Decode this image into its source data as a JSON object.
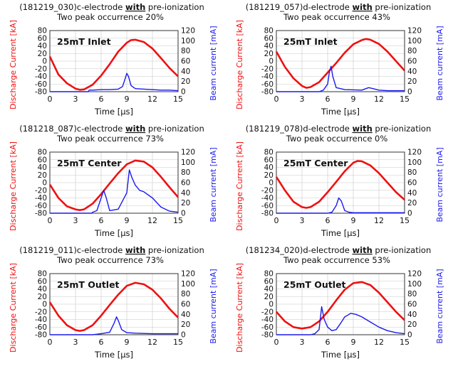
{
  "colors": {
    "discharge": "#ee1111",
    "beam": "#1a1aee",
    "grid": "#c8c8c8",
    "axis": "#333333"
  },
  "chart_data": [
    {
      "type": "line",
      "title_id": "(181219_030)c-electrode ",
      "title_with": "with",
      "title_rest": " pre-ionization",
      "subtitle": "Two peak occurrence 20%",
      "annotation": "25mT Inlet",
      "xlabel": "Time [μs]",
      "ylabel_left": "Discharge Current [kA]",
      "ylabel_right": "Beam current [mA]",
      "xlim": [
        0,
        15
      ],
      "ylim_left": [
        -80,
        80
      ],
      "ylim_right": [
        0,
        120
      ],
      "xticks": [
        0,
        3,
        6,
        9,
        12,
        15
      ],
      "yticks_left": [
        -80,
        -60,
        -40,
        -20,
        0,
        20,
        40,
        60,
        80
      ],
      "yticks_right": [
        0,
        20,
        40,
        60,
        80,
        100,
        120
      ],
      "grid": true,
      "series": [
        {
          "axis": "left",
          "color": "discharge",
          "x": [
            0,
            1,
            2,
            3,
            3.5,
            4,
            5,
            6,
            7,
            8,
            9,
            9.5,
            10,
            11,
            12,
            13,
            14,
            15
          ],
          "y": [
            12,
            -35,
            -58,
            -72,
            -75,
            -74,
            -62,
            -38,
            -8,
            25,
            48,
            55,
            56,
            50,
            33,
            8,
            -18,
            -40
          ]
        },
        {
          "axis": "right",
          "color": "beam",
          "x": [
            0,
            4.5,
            4.6,
            5,
            6,
            7,
            8,
            8.5,
            8.8,
            9,
            9.2,
            9.5,
            10,
            11,
            12,
            13,
            14,
            15
          ],
          "y": [
            0,
            0,
            3,
            3,
            4,
            4,
            5,
            10,
            25,
            36,
            30,
            12,
            6,
            5,
            4,
            3,
            3,
            2
          ]
        }
      ]
    },
    {
      "type": "line",
      "title_id": "(181219_057)d-electrode ",
      "title_with": "with",
      "title_rest": " pre-ionization",
      "subtitle": "Two peak occurrence 43%",
      "annotation": "25mT Inlet",
      "xlabel": "Time [μs]",
      "ylabel_left": "Discharge Current [kA]",
      "ylabel_right": "Beam current [mA]",
      "xlim": [
        0,
        15
      ],
      "ylim_left": [
        -80,
        80
      ],
      "ylim_right": [
        0,
        120
      ],
      "xticks": [
        0,
        3,
        6,
        9,
        12,
        15
      ],
      "yticks_left": [
        -80,
        -60,
        -40,
        -20,
        0,
        20,
        40,
        60,
        80
      ],
      "yticks_right": [
        0,
        20,
        40,
        60,
        80,
        100,
        120
      ],
      "grid": true,
      "series": [
        {
          "axis": "left",
          "color": "discharge",
          "x": [
            0,
            1,
            2,
            3,
            3.5,
            4,
            5,
            6,
            7,
            8,
            9,
            10,
            10.5,
            11,
            12,
            13,
            14,
            15
          ],
          "y": [
            25,
            -15,
            -45,
            -65,
            -70,
            -68,
            -55,
            -30,
            -5,
            22,
            44,
            55,
            58,
            56,
            45,
            25,
            0,
            -25
          ]
        },
        {
          "axis": "right",
          "color": "beam",
          "x": [
            0,
            5,
            5.5,
            6,
            6.2,
            6.4,
            6.6,
            7,
            8,
            10,
            10.8,
            11.3,
            12,
            13,
            14,
            15
          ],
          "y": [
            0,
            0,
            3,
            15,
            38,
            50,
            30,
            8,
            4,
            3,
            8,
            6,
            3,
            2,
            2,
            2
          ]
        }
      ]
    },
    {
      "type": "line",
      "title_id": "(181218_087)c-electrode ",
      "title_with": "with",
      "title_rest": " pre-ionization",
      "subtitle": "Two peak occurrence 73%",
      "annotation": "25mT Center",
      "xlabel": "Time [μs]",
      "ylabel_left": "Discharge Current [kA]",
      "ylabel_right": "Beam current [mA]",
      "xlim": [
        0,
        15
      ],
      "ylim_left": [
        -80,
        80
      ],
      "ylim_right": [
        0,
        120
      ],
      "xticks": [
        0,
        3,
        6,
        9,
        12,
        15
      ],
      "yticks_left": [
        -80,
        -60,
        -40,
        -20,
        0,
        20,
        40,
        60,
        80
      ],
      "yticks_right": [
        0,
        20,
        40,
        60,
        80,
        100,
        120
      ],
      "grid": true,
      "series": [
        {
          "axis": "left",
          "color": "discharge",
          "x": [
            0,
            1,
            2,
            3,
            3.5,
            4,
            5,
            6,
            7,
            8,
            9,
            10,
            11,
            12,
            13,
            14,
            15
          ],
          "y": [
            -5,
            -40,
            -62,
            -70,
            -72,
            -70,
            -55,
            -30,
            -2,
            25,
            48,
            58,
            55,
            40,
            15,
            -12,
            -38
          ]
        },
        {
          "axis": "right",
          "color": "beam",
          "x": [
            0,
            4.9,
            5,
            5.5,
            6,
            6.3,
            6.6,
            7,
            8,
            9,
            9.3,
            9.6,
            10,
            10.5,
            11,
            12,
            13,
            14,
            15
          ],
          "y": [
            0,
            0,
            2,
            5,
            30,
            45,
            30,
            5,
            8,
            40,
            85,
            70,
            55,
            45,
            42,
            30,
            12,
            4,
            2
          ]
        }
      ]
    },
    {
      "type": "line",
      "title_id": "(181219_078)d-electrode ",
      "title_with": "with",
      "title_rest": " pre-ionization",
      "subtitle": "Two peak occurrence 0%",
      "annotation": "25mT Center",
      "xlabel": "Time [μs]",
      "ylabel_left": "Discharge Current [kA]",
      "ylabel_right": "Beam current [mA]",
      "xlim": [
        0,
        15
      ],
      "ylim_left": [
        -80,
        80
      ],
      "ylim_right": [
        0,
        120
      ],
      "xticks": [
        0,
        3,
        6,
        9,
        12,
        15
      ],
      "yticks_left": [
        -80,
        -60,
        -40,
        -20,
        0,
        20,
        40,
        60,
        80
      ],
      "yticks_right": [
        0,
        20,
        40,
        60,
        80,
        100,
        120
      ],
      "grid": true,
      "series": [
        {
          "axis": "left",
          "color": "discharge",
          "x": [
            0,
            1,
            2,
            3,
            3.5,
            4,
            5,
            6,
            7,
            8,
            9,
            9.5,
            10,
            11,
            12,
            13,
            14,
            15
          ],
          "y": [
            15,
            -20,
            -50,
            -64,
            -66,
            -64,
            -50,
            -25,
            2,
            30,
            52,
            57,
            56,
            45,
            25,
            0,
            -25,
            -45
          ]
        },
        {
          "axis": "right",
          "color": "beam",
          "x": [
            0,
            6,
            6.5,
            7,
            7.3,
            7.6,
            8,
            8.5,
            9,
            10,
            12,
            15
          ],
          "y": [
            0,
            0,
            2,
            15,
            30,
            24,
            5,
            2,
            1,
            1,
            1,
            1
          ]
        }
      ]
    },
    {
      "type": "line",
      "title_id": "(181219_011)c-electrode ",
      "title_with": "with",
      "title_rest": " pre-ionization",
      "subtitle": "Two peak occurrence 73%",
      "annotation": "25mT Outlet",
      "xlabel": "Time [μs]",
      "ylabel_left": "Discharge Current [kA]",
      "ylabel_right": "Beam current [mA]",
      "xlim": [
        0,
        15
      ],
      "ylim_left": [
        -80,
        80
      ],
      "ylim_right": [
        0,
        120
      ],
      "xticks": [
        0,
        3,
        6,
        9,
        12,
        15
      ],
      "yticks_left": [
        -80,
        -60,
        -40,
        -20,
        0,
        20,
        40,
        60,
        80
      ],
      "yticks_right": [
        0,
        20,
        40,
        60,
        80,
        100,
        120
      ],
      "grid": true,
      "series": [
        {
          "axis": "left",
          "color": "discharge",
          "x": [
            0,
            1,
            2,
            3,
            3.5,
            4,
            5,
            6,
            7,
            8,
            9,
            10,
            11,
            12,
            13,
            14,
            15
          ],
          "y": [
            5,
            -30,
            -55,
            -68,
            -70,
            -68,
            -55,
            -30,
            -2,
            25,
            48,
            56,
            52,
            38,
            15,
            -12,
            -35
          ]
        },
        {
          "axis": "right",
          "color": "beam",
          "x": [
            0,
            5,
            6,
            7,
            7.5,
            7.8,
            8,
            8.4,
            9,
            10,
            12,
            15
          ],
          "y": [
            0,
            0,
            2,
            5,
            22,
            35,
            28,
            10,
            4,
            3,
            2,
            2
          ]
        }
      ]
    },
    {
      "type": "line",
      "title_id": "(181234_020)d-electrode ",
      "title_with": "with",
      "title_rest": " pre-ionization",
      "subtitle": "Two peak occurrence 53%",
      "annotation": "25mT Outlet",
      "xlabel": "Time [μs]",
      "ylabel_left": "Discharge Current [kA]",
      "ylabel_right": "Beam current [mA]",
      "xlim": [
        0,
        15
      ],
      "ylim_left": [
        -80,
        80
      ],
      "ylim_right": [
        0,
        120
      ],
      "xticks": [
        0,
        3,
        6,
        9,
        12,
        15
      ],
      "yticks_left": [
        -80,
        -60,
        -40,
        -20,
        0,
        20,
        40,
        60,
        80
      ],
      "yticks_right": [
        0,
        20,
        40,
        60,
        80,
        100,
        120
      ],
      "grid": true,
      "series": [
        {
          "axis": "left",
          "color": "discharge",
          "x": [
            0,
            1,
            2,
            3,
            4,
            5,
            6,
            7,
            8,
            9,
            10,
            11,
            12,
            13,
            14,
            15
          ],
          "y": [
            -20,
            -45,
            -60,
            -64,
            -60,
            -45,
            -20,
            10,
            38,
            55,
            58,
            50,
            30,
            5,
            -20,
            -42
          ]
        },
        {
          "axis": "right",
          "color": "beam",
          "x": [
            0,
            4,
            4.5,
            5,
            5.3,
            5.6,
            6,
            6.5,
            7,
            7.5,
            8,
            8.3,
            8.7,
            9.3,
            10,
            11,
            12,
            13,
            14,
            15
          ],
          "y": [
            0,
            0,
            2,
            10,
            55,
            30,
            15,
            8,
            10,
            22,
            35,
            38,
            42,
            40,
            35,
            25,
            15,
            8,
            4,
            2
          ]
        }
      ]
    }
  ]
}
